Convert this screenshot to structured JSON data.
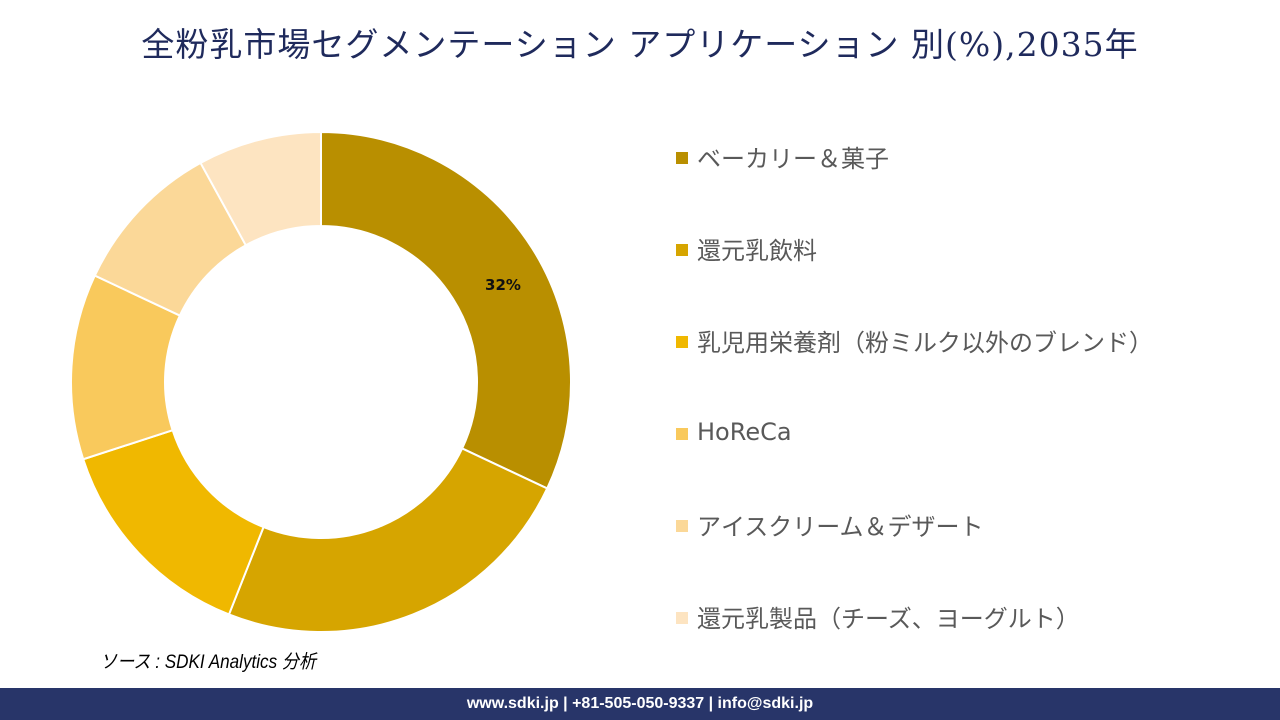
{
  "title": "全粉乳市場セグメンテーション アプリケーション 別(%),2035年",
  "chart_data": {
    "type": "pie",
    "subtype": "donut",
    "title": "全粉乳市場セグメンテーション アプリケーション 別(%),2035年",
    "categories": [
      "ベーカリー＆菓子",
      "還元乳飲料",
      "乳児用栄養剤（粉ミルク以外のブレンド）",
      "HoReCa",
      "アイスクリーム＆デザート",
      "還元乳製品（チーズ、ヨーグルト）"
    ],
    "values": [
      32,
      24,
      14,
      12,
      10,
      8
    ],
    "colors": [
      "#b98f00",
      "#d6a500",
      "#f0b800",
      "#f9c95c",
      "#fbd898",
      "#fde4c1"
    ],
    "data_labels": [
      {
        "category": "ベーカリー＆菓子",
        "text": "32%"
      }
    ],
    "legend_position": "right",
    "start_angle_deg": 0,
    "direction": "clockwise"
  },
  "legend": [
    {
      "label": "ベーカリー＆菓子",
      "color": "#b98f00"
    },
    {
      "label": "還元乳飲料",
      "color": "#d6a500"
    },
    {
      "label": "乳児用栄養剤（粉ミルク以外のブレンド）",
      "color": "#f0b800"
    },
    {
      "label": "HoReCa",
      "color": "#f9c95c"
    },
    {
      "label": "アイスクリーム＆デザート",
      "color": "#fbd898"
    },
    {
      "label": "還元乳製品（チーズ、ヨーグルト）",
      "color": "#fde4c1"
    }
  ],
  "label_32": "32%",
  "source": "ソース : SDKI Analytics 分析",
  "footer": "www.sdki.jp | +81-505-050-9337 | info@sdki.jp"
}
